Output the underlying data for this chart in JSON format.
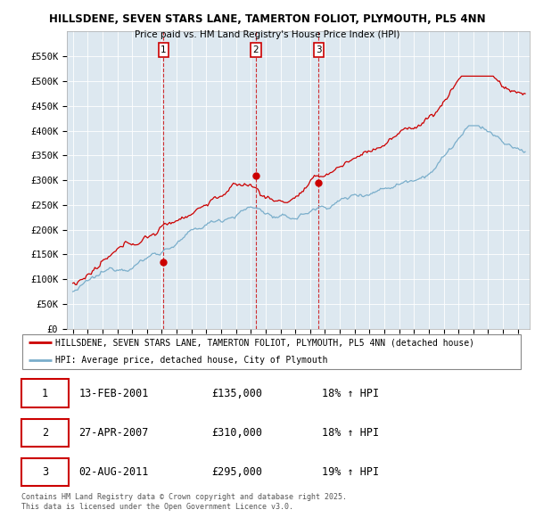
{
  "title_line1": "HILLSDENE, SEVEN STARS LANE, TAMERTON FOLIOT, PLYMOUTH, PL5 4NN",
  "title_line2": "Price paid vs. HM Land Registry's House Price Index (HPI)",
  "background_color": "#ffffff",
  "plot_bg_color": "#dde8f0",
  "grid_color": "#ffffff",
  "red_line_color": "#cc0000",
  "blue_line_color": "#7aaecb",
  "vline_color": "#cc0000",
  "sale_labels": [
    "1",
    "2",
    "3"
  ],
  "sale_year_floats": [
    2001.12,
    2007.32,
    2011.58
  ],
  "sale_prices": [
    135000,
    310000,
    295000
  ],
  "table_rows": [
    [
      "1",
      "13-FEB-2001",
      "£135,000",
      "18% ↑ HPI"
    ],
    [
      "2",
      "27-APR-2007",
      "£310,000",
      "18% ↑ HPI"
    ],
    [
      "3",
      "02-AUG-2011",
      "£295,000",
      "19% ↑ HPI"
    ]
  ],
  "legend_line1": "HILLSDENE, SEVEN STARS LANE, TAMERTON FOLIOT, PLYMOUTH, PL5 4NN (detached house)",
  "legend_line2": "HPI: Average price, detached house, City of Plymouth",
  "footer": "Contains HM Land Registry data © Crown copyright and database right 2025.\nThis data is licensed under the Open Government Licence v3.0.",
  "ylim": [
    0,
    600000
  ],
  "yticks": [
    0,
    50000,
    100000,
    150000,
    200000,
    250000,
    300000,
    350000,
    400000,
    450000,
    500000,
    550000
  ],
  "ytick_labels": [
    "£0",
    "£50K",
    "£100K",
    "£150K",
    "£200K",
    "£250K",
    "£300K",
    "£350K",
    "£400K",
    "£450K",
    "£500K",
    "£550K"
  ],
  "xlim_start": 1994.6,
  "xlim_end": 2025.8
}
